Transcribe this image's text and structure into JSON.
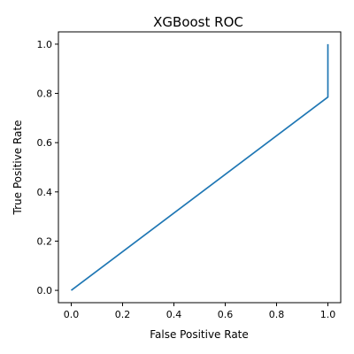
{
  "chart_data": {
    "type": "line",
    "title": "XGBoost ROC",
    "xlabel": "False Positive Rate",
    "ylabel": "True Positive Rate",
    "xlim": [
      -0.05,
      1.05
    ],
    "ylim": [
      -0.05,
      1.05
    ],
    "xticks": [
      "0.0",
      "0.2",
      "0.4",
      "0.6",
      "0.8",
      "1.0"
    ],
    "yticks": [
      "0.0",
      "0.2",
      "0.4",
      "0.6",
      "0.8",
      "1.0"
    ],
    "grid": false,
    "series": [
      {
        "color": "#1f77b4",
        "x": [
          0.0,
          1.0,
          1.0
        ],
        "y": [
          0.0,
          0.785,
          1.0
        ]
      }
    ]
  }
}
